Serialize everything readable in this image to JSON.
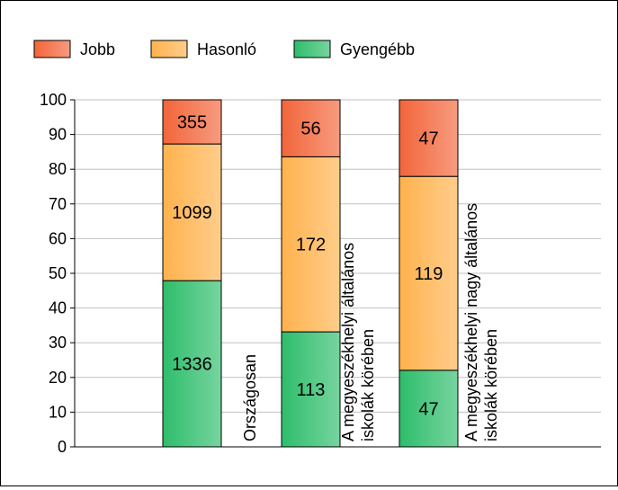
{
  "chart_data": {
    "type": "bar",
    "stacked": "percent",
    "categories": [
      [
        "Országosan"
      ],
      [
        "A megyeszékhelyi általános",
        "iskolák körében"
      ],
      [
        "A megyeszékhelyi nagy általános",
        "iskolák körében"
      ]
    ],
    "series": [
      {
        "name": "Gyengébb",
        "counts": [
          1336,
          113,
          47
        ],
        "color": "#2ebd6b"
      },
      {
        "name": "Hasonló",
        "counts": [
          1099,
          172,
          119
        ],
        "color": "#ffb24d"
      },
      {
        "name": "Jobb",
        "counts": [
          355,
          56,
          47
        ],
        "color": "#f2653a"
      }
    ],
    "legend_order": [
      "Jobb",
      "Hasonló",
      "Gyengébb"
    ],
    "legend_position": "top-left",
    "y_ticks": [
      0,
      10,
      20,
      30,
      40,
      50,
      60,
      70,
      80,
      90,
      100
    ],
    "ylim": [
      0,
      100
    ],
    "grid": true,
    "title": "",
    "xlabel": "",
    "ylabel": ""
  }
}
